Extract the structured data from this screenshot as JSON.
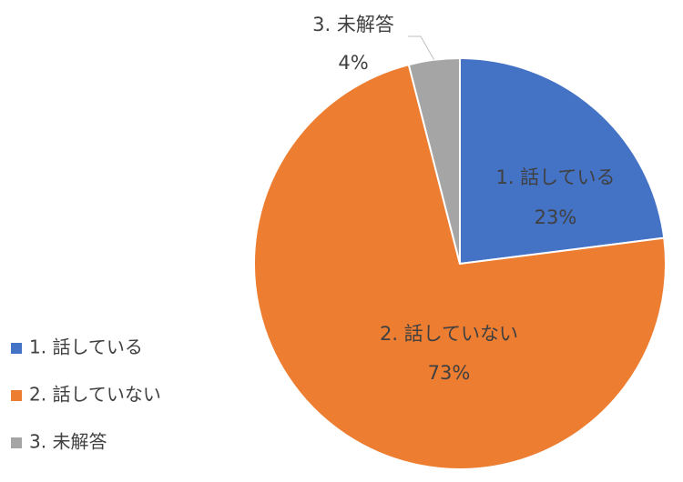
{
  "chart_data": {
    "type": "pie",
    "categories": [
      "1. 話している",
      "2. 話していない",
      "3. 未解答"
    ],
    "values": [
      23,
      73,
      4
    ],
    "value_labels": [
      "23%",
      "73%",
      "4%"
    ],
    "colors": [
      "#4472c4",
      "#ed7d31",
      "#a5a5a5"
    ],
    "legend": "left"
  }
}
